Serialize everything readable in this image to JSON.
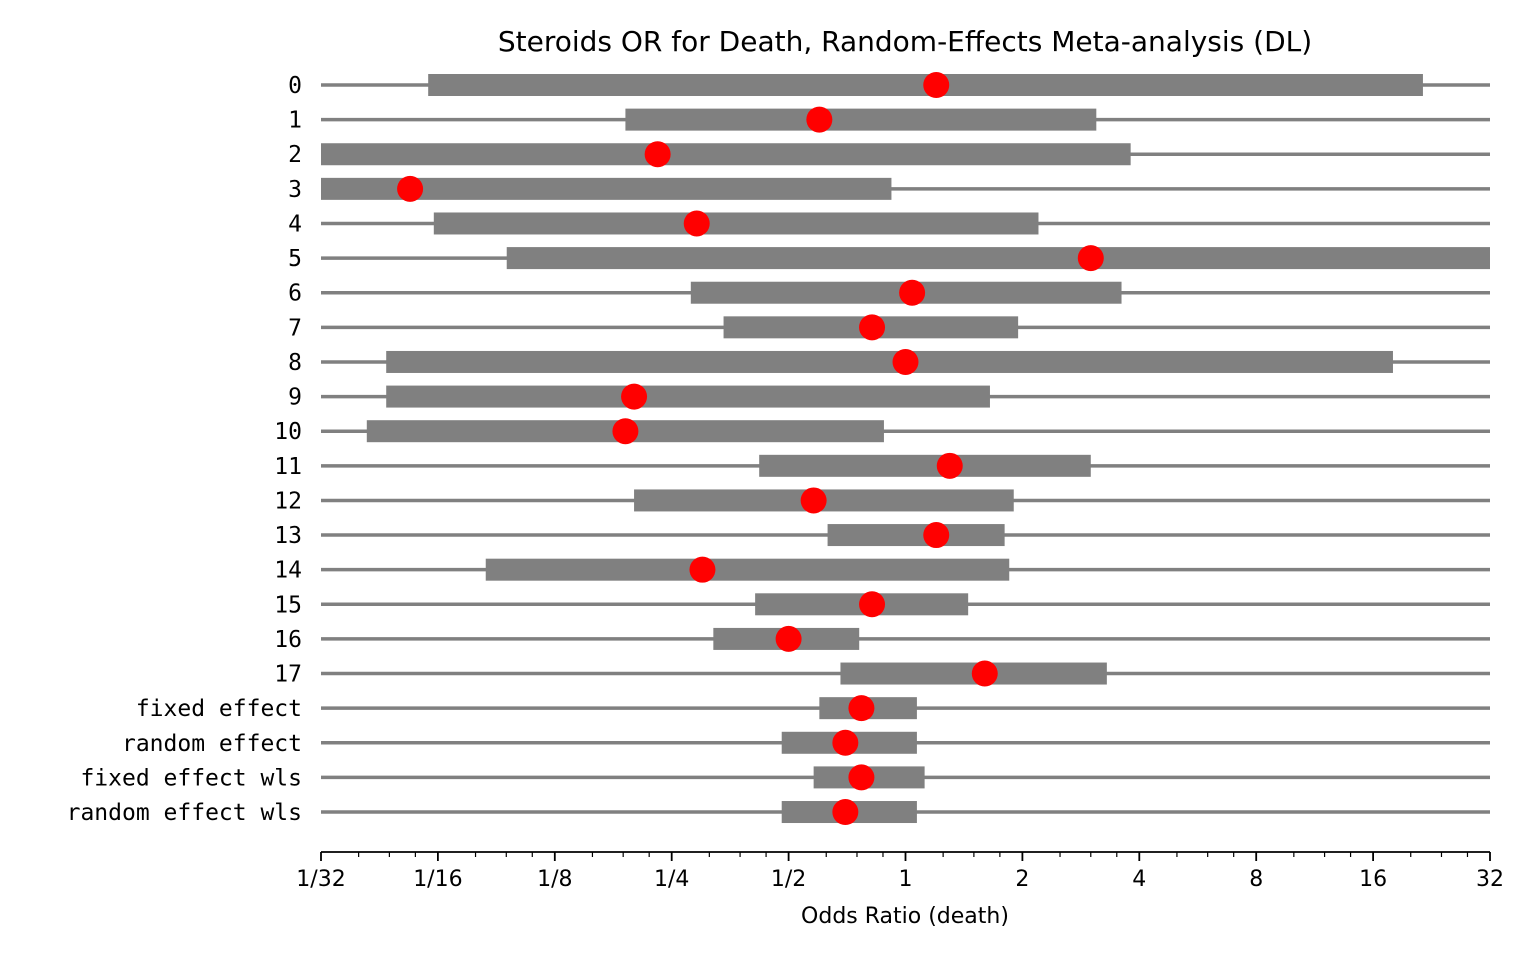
{
  "chart_data": {
    "type": "forest",
    "title": "Steroids OR for Death, Random-Effects Meta-analysis (DL)",
    "xlabel": "Odds Ratio (death)",
    "xscale": "log2",
    "xlim": [
      0.03125,
      32
    ],
    "xticks": [
      0.03125,
      0.0625,
      0.125,
      0.25,
      0.5,
      1,
      2,
      4,
      8,
      16,
      32
    ],
    "xtick_labels": [
      "1/32",
      "1/16",
      "1/8",
      "1/4",
      "1/2",
      "1",
      "2",
      "4",
      "8",
      "16",
      "32"
    ],
    "grid": false,
    "colors": {
      "interval": "#808080",
      "point": "#ff0000",
      "reference_line": "#808080"
    },
    "rows": [
      {
        "label": "0",
        "or": 1.2,
        "ci_low": 0.059,
        "ci_high": 21.5
      },
      {
        "label": "1",
        "or": 0.6,
        "ci_low": 0.19,
        "ci_high": 3.1
      },
      {
        "label": "2",
        "or": 0.23,
        "ci_low": 0.03125,
        "ci_high": 3.8
      },
      {
        "label": "3",
        "or": 0.053,
        "ci_low": 0.03125,
        "ci_high": 0.92
      },
      {
        "label": "4",
        "or": 0.29,
        "ci_low": 0.061,
        "ci_high": 2.2
      },
      {
        "label": "5",
        "or": 3.0,
        "ci_low": 0.094,
        "ci_high": 32
      },
      {
        "label": "6",
        "or": 1.04,
        "ci_low": 0.28,
        "ci_high": 3.6
      },
      {
        "label": "7",
        "or": 0.82,
        "ci_low": 0.34,
        "ci_high": 1.95
      },
      {
        "label": "8",
        "or": 1.0,
        "ci_low": 0.046,
        "ci_high": 18.0
      },
      {
        "label": "9",
        "or": 0.2,
        "ci_low": 0.046,
        "ci_high": 1.65
      },
      {
        "label": "10",
        "or": 0.19,
        "ci_low": 0.041,
        "ci_high": 0.88
      },
      {
        "label": "11",
        "or": 1.3,
        "ci_low": 0.42,
        "ci_high": 3.0
      },
      {
        "label": "12",
        "or": 0.58,
        "ci_low": 0.2,
        "ci_high": 1.9
      },
      {
        "label": "13",
        "or": 1.2,
        "ci_low": 0.63,
        "ci_high": 1.8
      },
      {
        "label": "14",
        "or": 0.3,
        "ci_low": 0.083,
        "ci_high": 1.85
      },
      {
        "label": "15",
        "or": 0.82,
        "ci_low": 0.41,
        "ci_high": 1.45
      },
      {
        "label": "16",
        "or": 0.5,
        "ci_low": 0.32,
        "ci_high": 0.76
      },
      {
        "label": "17",
        "or": 1.6,
        "ci_low": 0.68,
        "ci_high": 3.3
      },
      {
        "label": "fixed effect",
        "or": 0.77,
        "ci_low": 0.6,
        "ci_high": 1.07
      },
      {
        "label": "random effect",
        "or": 0.7,
        "ci_low": 0.48,
        "ci_high": 1.07
      },
      {
        "label": "fixed effect wls",
        "or": 0.77,
        "ci_low": 0.58,
        "ci_high": 1.12
      },
      {
        "label": "random effect wls",
        "or": 0.7,
        "ci_low": 0.48,
        "ci_high": 1.07
      }
    ]
  }
}
